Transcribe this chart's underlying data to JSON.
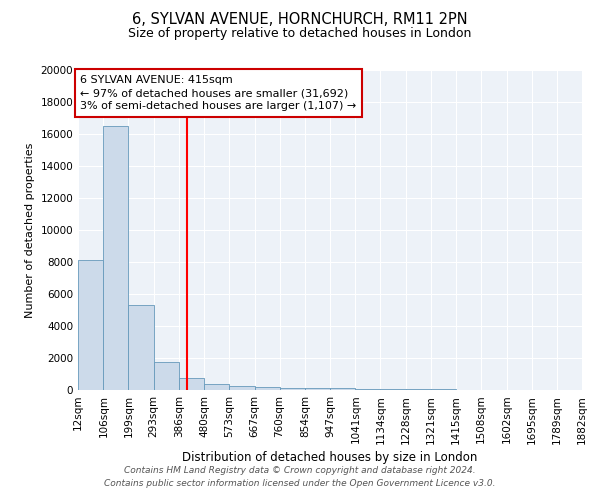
{
  "title1": "6, SYLVAN AVENUE, HORNCHURCH, RM11 2PN",
  "title2": "Size of property relative to detached houses in London",
  "xlabel": "Distribution of detached houses by size in London",
  "ylabel": "Number of detached properties",
  "bar_values": [
    8100,
    16500,
    5300,
    1750,
    750,
    350,
    250,
    200,
    150,
    150,
    100,
    80,
    60,
    50,
    40,
    30,
    20,
    15,
    10,
    8
  ],
  "bin_edges": [
    12,
    106,
    199,
    293,
    386,
    480,
    573,
    667,
    760,
    854,
    947,
    1041,
    1134,
    1228,
    1321,
    1415,
    1508,
    1602,
    1695,
    1789,
    1882
  ],
  "tick_labels": [
    "12sqm",
    "106sqm",
    "199sqm",
    "293sqm",
    "386sqm",
    "480sqm",
    "573sqm",
    "667sqm",
    "760sqm",
    "854sqm",
    "947sqm",
    "1041sqm",
    "1134sqm",
    "1228sqm",
    "1321sqm",
    "1415sqm",
    "1508sqm",
    "1602sqm",
    "1695sqm",
    "1789sqm",
    "1882sqm"
  ],
  "bar_color": "#ccdaea",
  "bar_edge_color": "#6699bb",
  "red_line_x": 415,
  "annotation_text": "6 SYLVAN AVENUE: 415sqm\n← 97% of detached houses are smaller (31,692)\n3% of semi-detached houses are larger (1,107) →",
  "annotation_box_color": "#ffffff",
  "annotation_box_edge_color": "#cc0000",
  "ylim": [
    0,
    20000
  ],
  "yticks": [
    0,
    2000,
    4000,
    6000,
    8000,
    10000,
    12000,
    14000,
    16000,
    18000,
    20000
  ],
  "bg_color": "#edf2f8",
  "grid_color": "#ffffff",
  "footer_text": "Contains HM Land Registry data © Crown copyright and database right 2024.\nContains public sector information licensed under the Open Government Licence v3.0.",
  "title1_fontsize": 10.5,
  "title2_fontsize": 9,
  "xlabel_fontsize": 8.5,
  "ylabel_fontsize": 8,
  "tick_fontsize": 7.5,
  "annotation_fontsize": 8,
  "footer_fontsize": 6.5
}
